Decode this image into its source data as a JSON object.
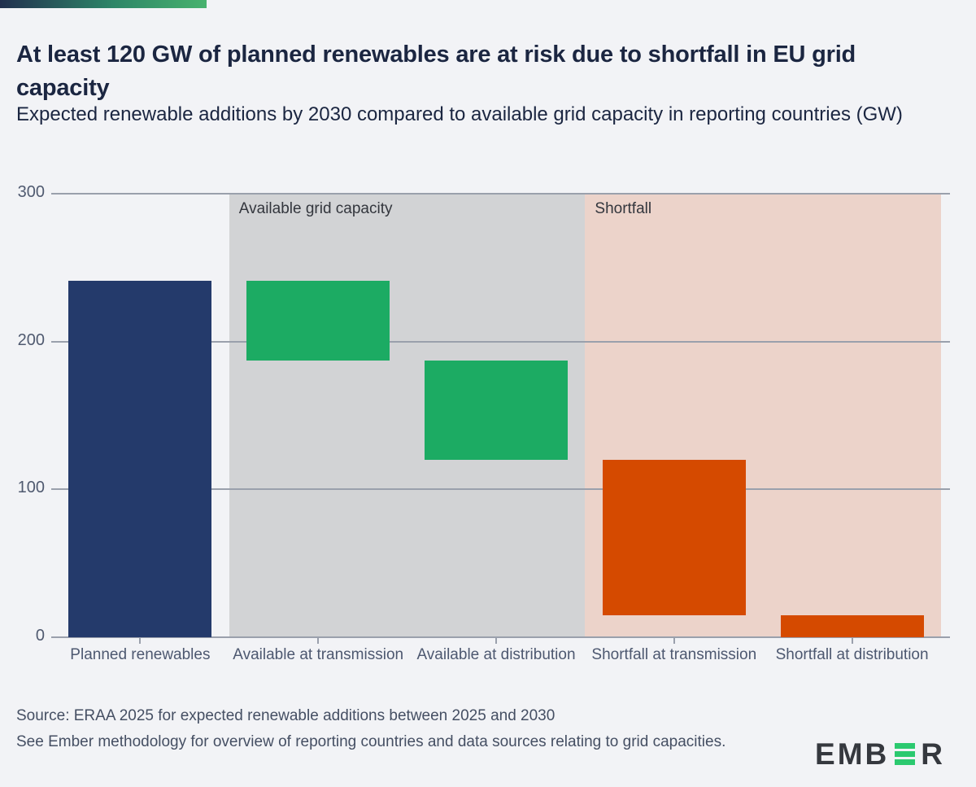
{
  "header": {
    "title": "At least 120 GW of planned renewables are at risk due to shortfall in EU grid capacity",
    "subtitle": "Expected renewable additions by 2030 compared to available grid capacity in reporting countries (GW)"
  },
  "chart_data": {
    "type": "bar",
    "variant": "waterfall",
    "unit": "GW",
    "categories": [
      "Planned renewables",
      "Available at transmission",
      "Available at distribution",
      "Shortfall at transmission",
      "Shortfall at distribution"
    ],
    "bars": [
      {
        "label": "Planned renewables",
        "from": 0,
        "to": 241,
        "value": 241,
        "group": "planned",
        "color": "#243a6b"
      },
      {
        "label": "Available at transmission",
        "from": 187,
        "to": 241,
        "value": 54,
        "group": "available",
        "color": "#1cab63"
      },
      {
        "label": "Available at distribution",
        "from": 120,
        "to": 187,
        "value": 67,
        "group": "available",
        "color": "#1cab63"
      },
      {
        "label": "Shortfall at transmission",
        "from": 15,
        "to": 120,
        "value": 105,
        "group": "shortfall",
        "color": "#d54a00"
      },
      {
        "label": "Shortfall at distribution",
        "from": 0,
        "to": 15,
        "value": 15,
        "group": "shortfall",
        "color": "#d54a00"
      }
    ],
    "ylim": [
      0,
      300
    ],
    "yticks": [
      0,
      100,
      200,
      300
    ],
    "grid": true,
    "legend_position": "none",
    "bands": [
      {
        "label": "Available grid capacity",
        "color": "#d2d3d5",
        "from_category": 1,
        "to_category": 2
      },
      {
        "label": "Shortfall",
        "color": "#ecd3ca",
        "from_category": 3,
        "to_category": 4
      }
    ]
  },
  "footer": {
    "source_lines": [
      "Source: ERAA 2025 for expected renewable additions between 2025 and 2030",
      "See Ember methodology for overview of reporting countries and data sources relating to grid capacities."
    ],
    "logo": {
      "name": "EMBER",
      "prefix": "EMB",
      "suffix": "R"
    }
  },
  "colors": {
    "background": "#f2f3f6",
    "title_text": "#1b2641",
    "axis_text": "#505a70",
    "band_label_text": "#33363d",
    "source_text": "#454f63",
    "gridline": "#9aa0ac",
    "accent_gradient": [
      "#22304f",
      "#2e8668",
      "#48b26e"
    ],
    "logo_dark": "#35383e",
    "logo_green": "#2bc96f"
  }
}
